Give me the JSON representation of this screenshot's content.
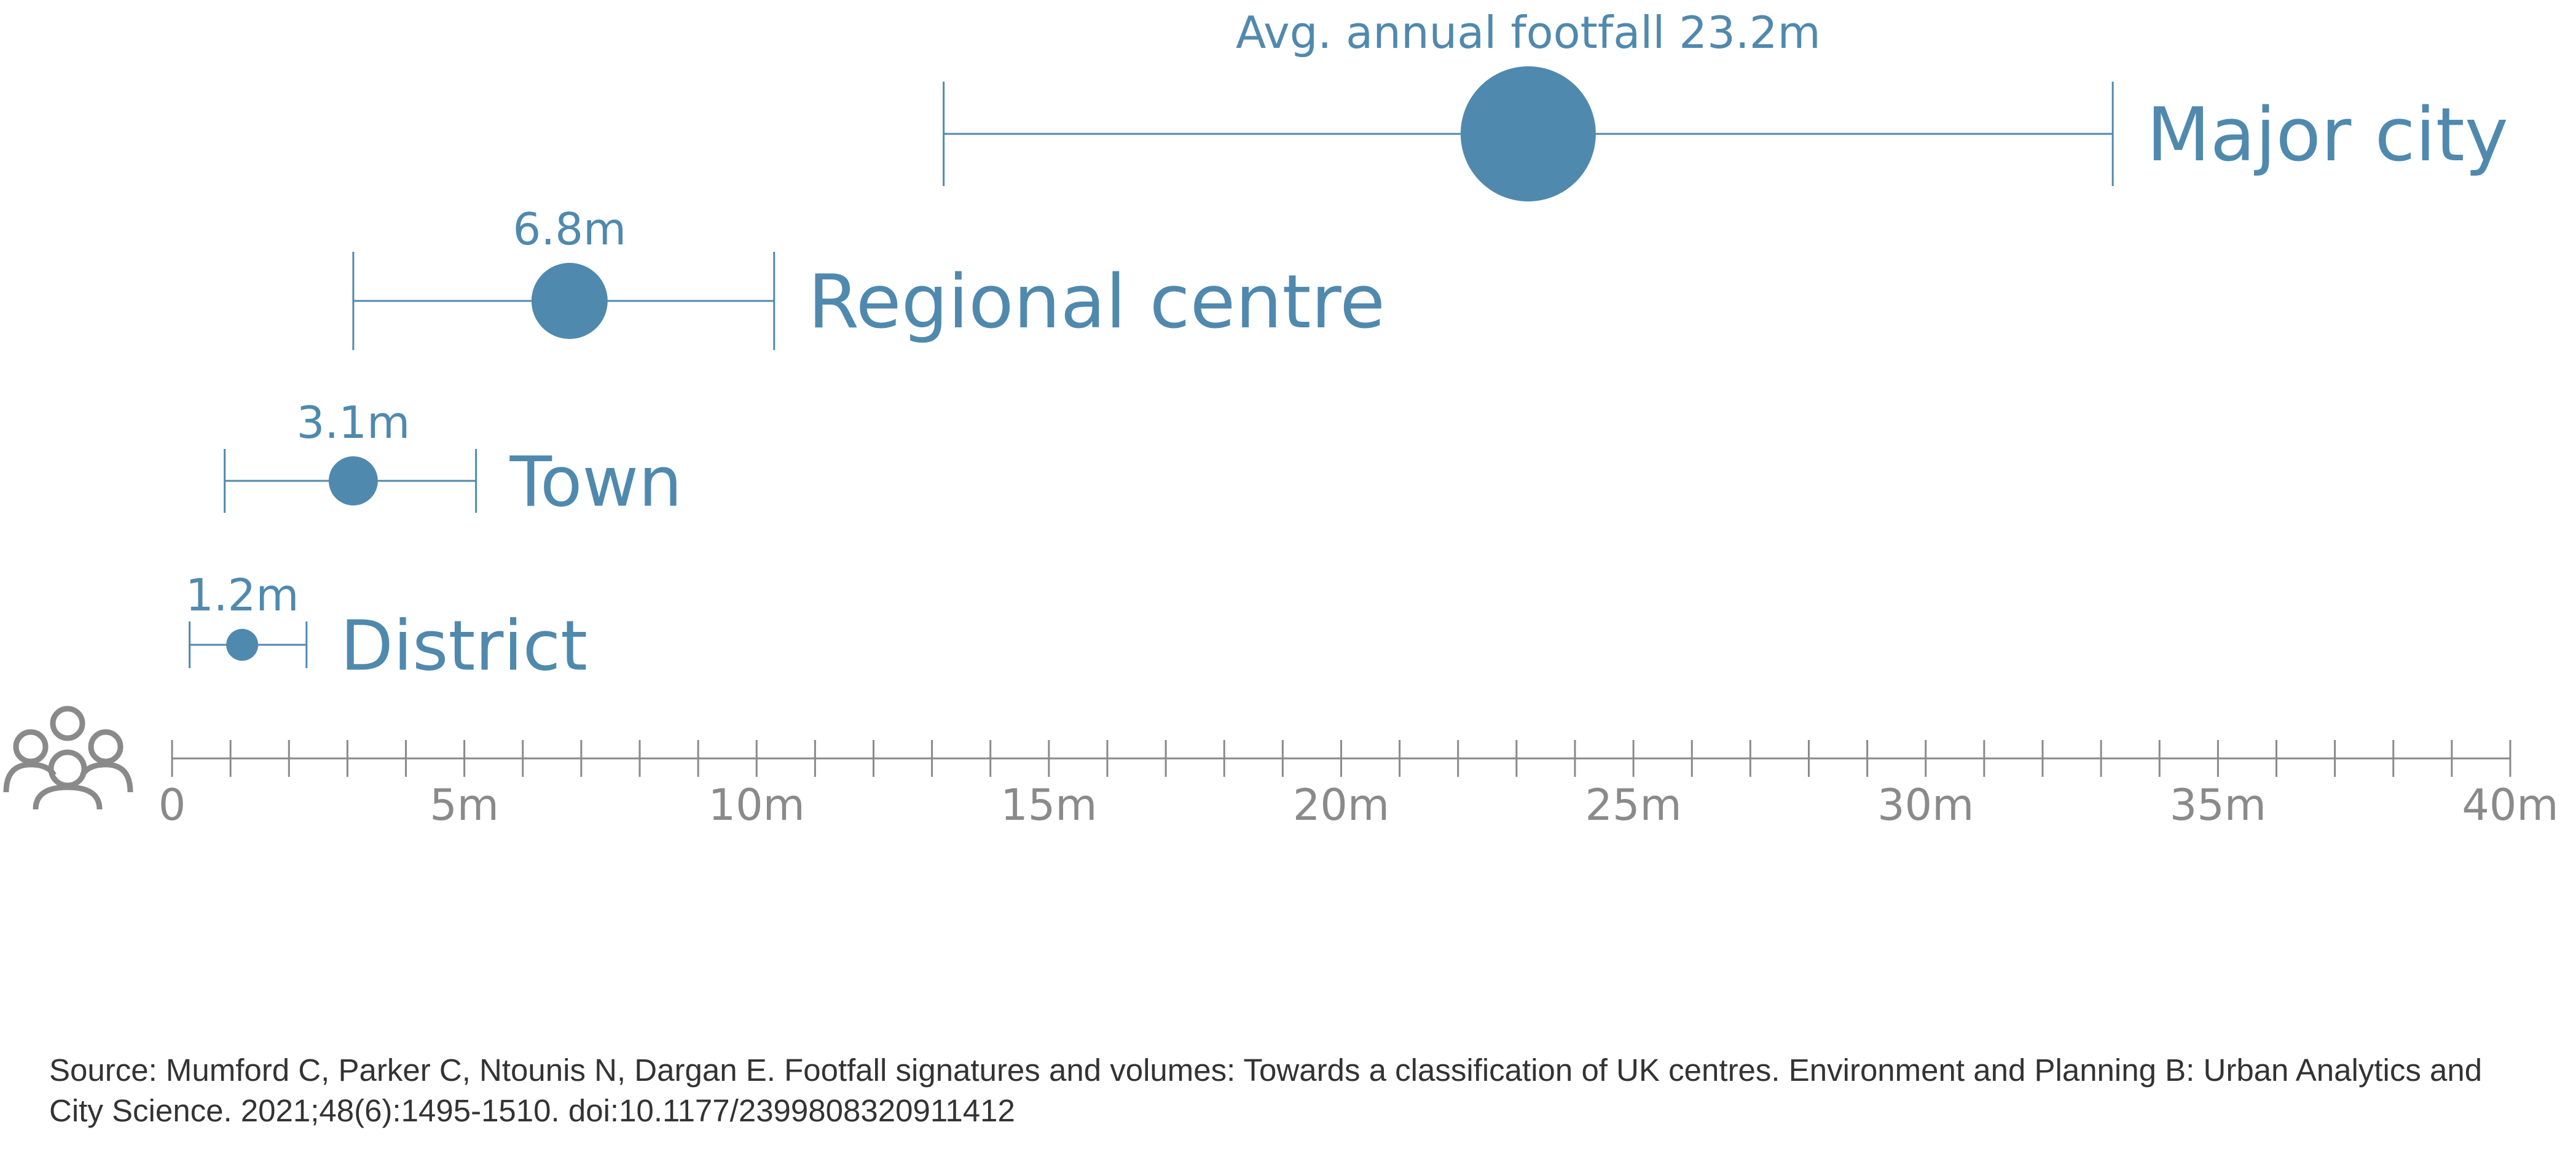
{
  "chart_data": {
    "type": "range-dot",
    "x_axis": {
      "min": 0,
      "max": 40,
      "major_step": 5,
      "minor_step": 1,
      "tick_labels": [
        "0",
        "5m",
        "10m",
        "15m",
        "20m",
        "25m",
        "30m",
        "35m",
        "40m"
      ]
    },
    "series": [
      {
        "category": "District",
        "avg": 1.2,
        "low": 0.3,
        "high": 2.3,
        "avg_label": "1.2m"
      },
      {
        "category": "Town",
        "avg": 3.1,
        "low": 0.9,
        "high": 5.2,
        "avg_label": "3.1m"
      },
      {
        "category": "Regional centre",
        "avg": 6.8,
        "low": 3.1,
        "high": 10.3,
        "avg_label": "6.8m"
      },
      {
        "category": "Major city",
        "avg": 23.2,
        "low": 13.2,
        "high": 33.2,
        "avg_label": "Avg. annual footfall 23.2m"
      }
    ],
    "colors": {
      "series": "#5089AE",
      "axis": "#8A8A8A",
      "icon": "#8A8A8A"
    }
  },
  "people_icon": "people-group-icon",
  "source_text": "Source: Mumford C, Parker C, Ntounis N, Dargan E. Footfall signatures and volumes: Towards a classification of UK centres. Environment and Planning B: Urban Analytics and City Science. 2021;48(6):1495-1510. doi:10.1177/2399808320911412"
}
